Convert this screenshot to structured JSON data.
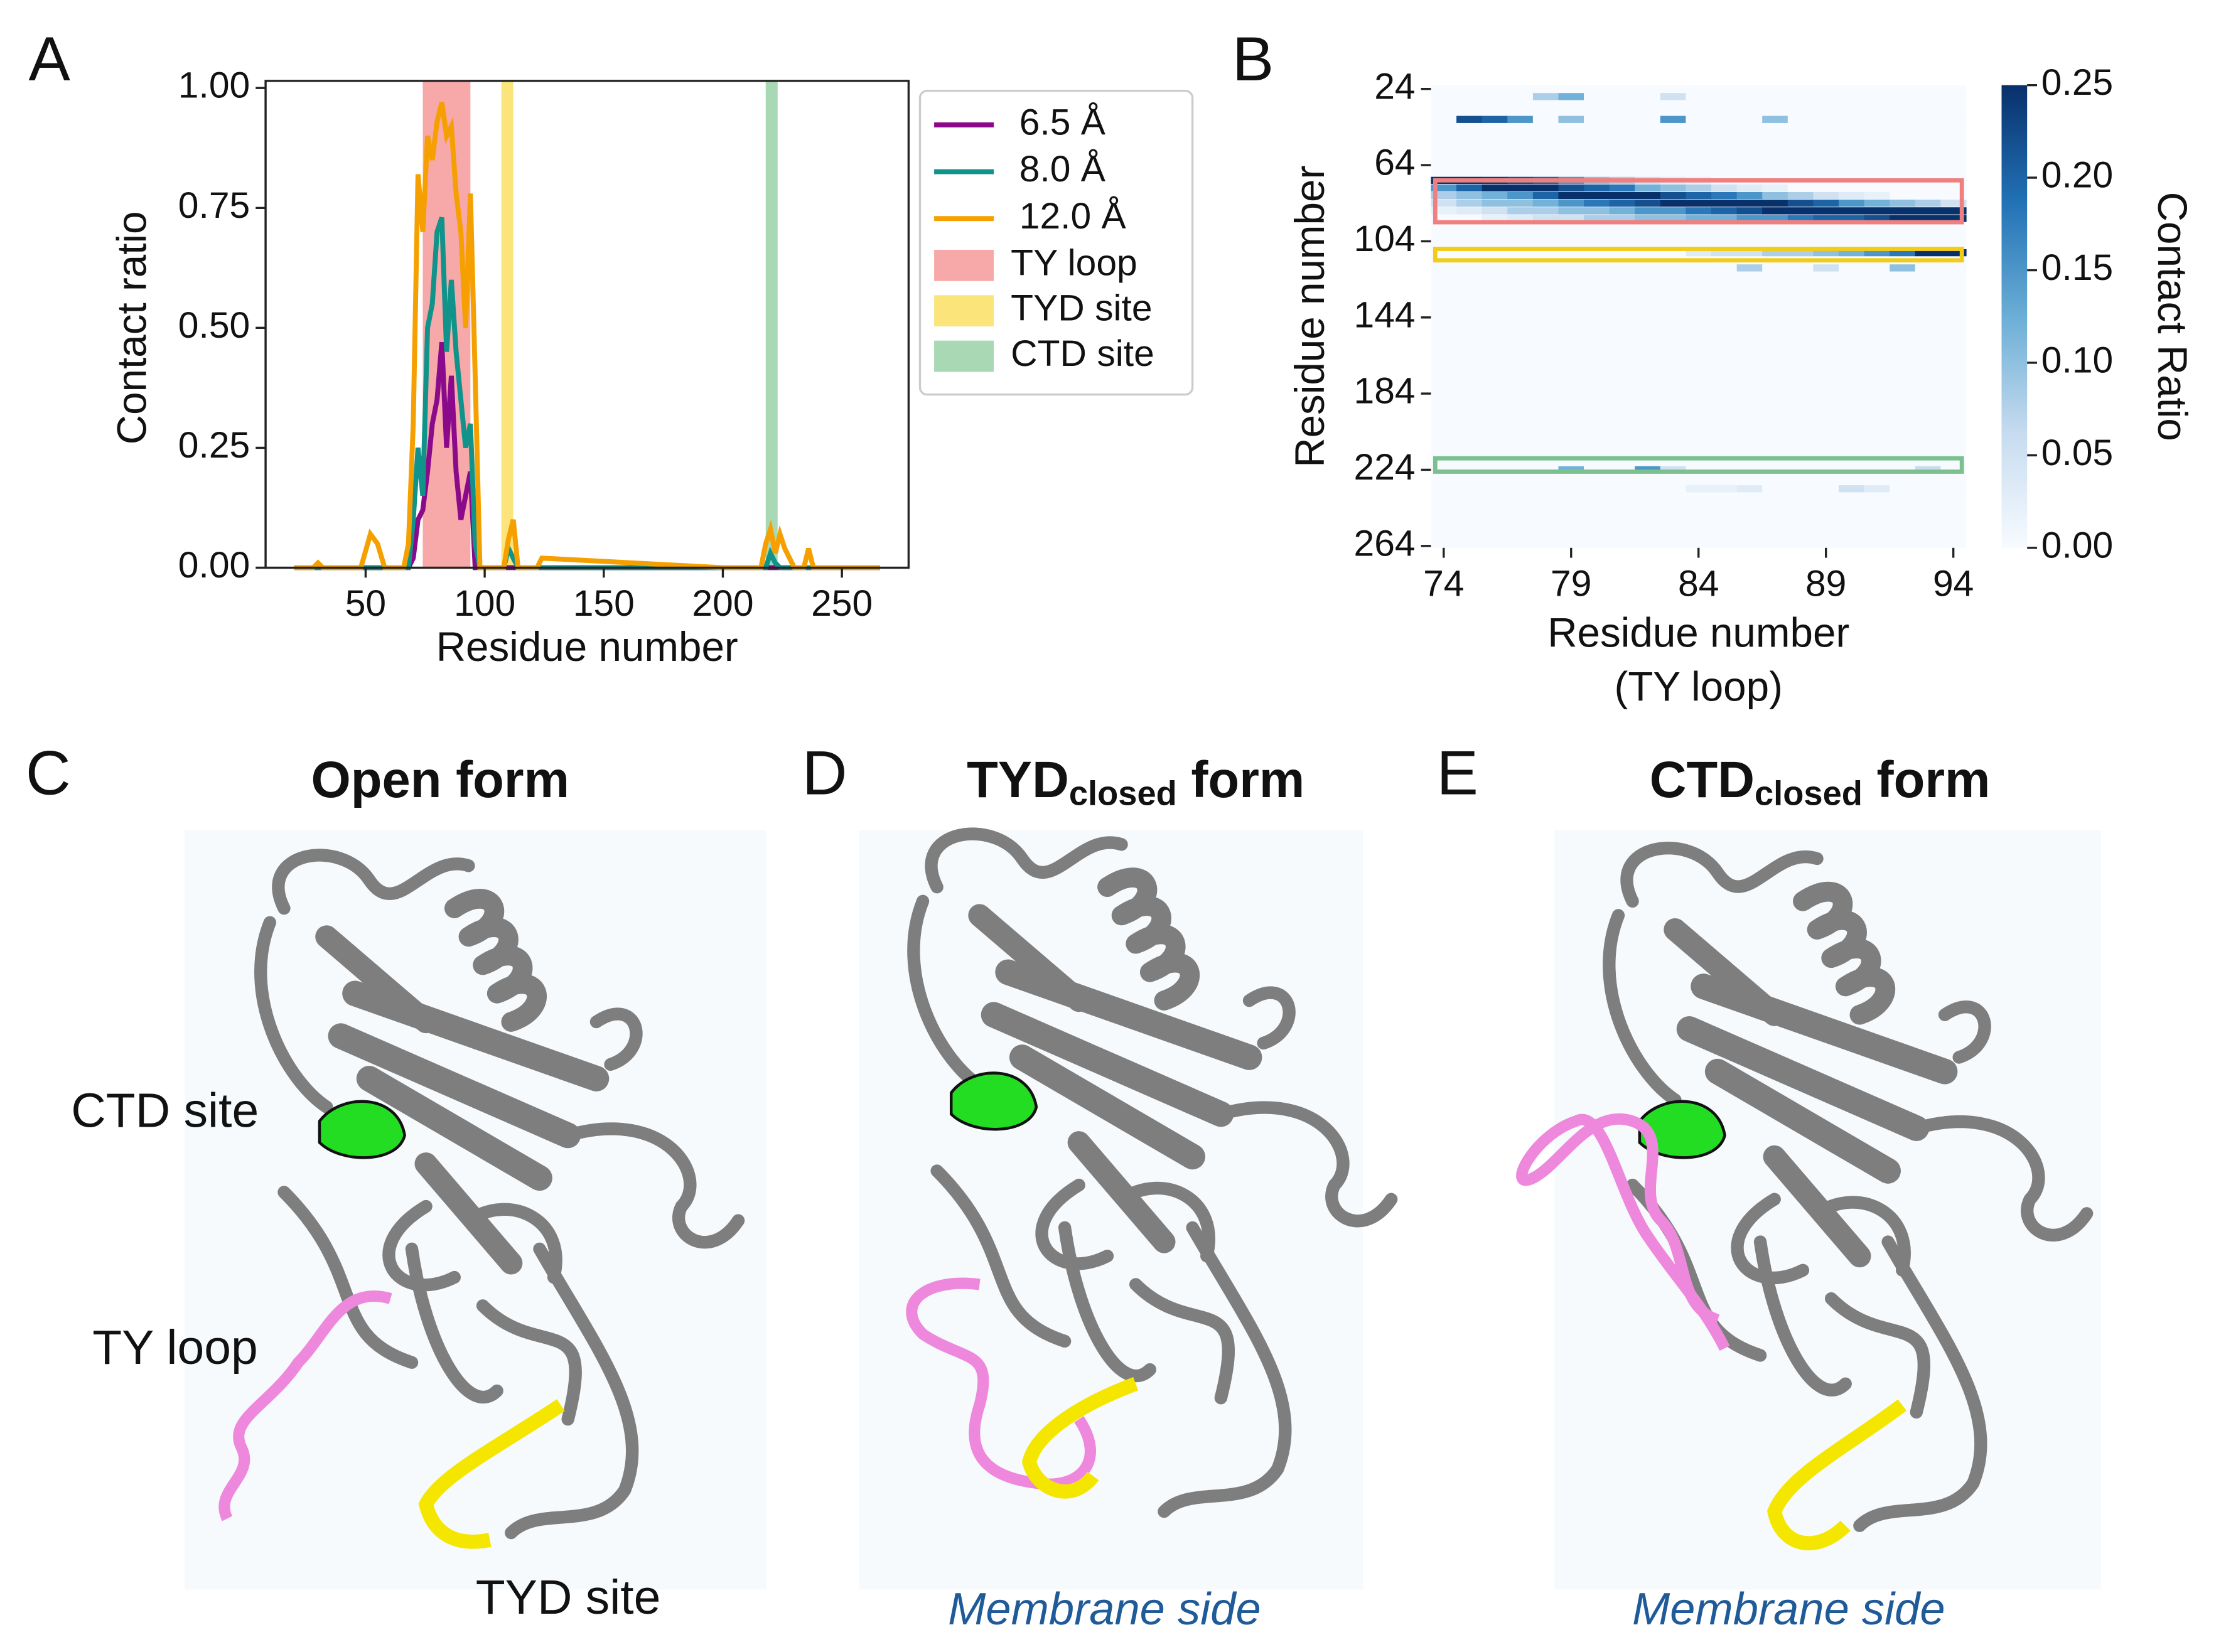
{
  "chart_data": [
    {
      "type": "line",
      "panel": "A",
      "x": [
        20,
        28,
        30,
        32,
        48,
        52,
        55,
        58,
        66,
        68,
        70,
        72,
        74,
        76,
        78,
        80,
        82,
        84,
        86,
        88,
        90,
        92,
        94,
        96,
        98,
        108,
        110,
        112,
        114,
        122,
        124,
        200,
        216,
        218,
        220,
        222,
        224,
        226,
        230,
        234,
        236,
        238,
        266
      ],
      "series": [
        {
          "name": "6.5 Å",
          "color": "#8b0a8b",
          "values": [
            0,
            0,
            0,
            0,
            0,
            0,
            0,
            0,
            0,
            0,
            0.02,
            0.1,
            0.12,
            0.2,
            0.3,
            0.35,
            0.47,
            0.25,
            0.4,
            0.2,
            0.1,
            0.15,
            0.2,
            0,
            0,
            0,
            0,
            0,
            0,
            0,
            0,
            0,
            0,
            0,
            0,
            0,
            0,
            0,
            0,
            0,
            0,
            0,
            0
          ]
        },
        {
          "name": "8.0 Å",
          "color": "#10938a",
          "values": [
            0,
            0,
            0,
            0,
            0,
            0,
            0,
            0,
            0,
            0,
            0.1,
            0.25,
            0.15,
            0.5,
            0.55,
            0.7,
            0.73,
            0.45,
            0.6,
            0.45,
            0.35,
            0.25,
            0.3,
            0.05,
            0,
            0,
            0.04,
            0.02,
            0,
            0,
            0,
            0,
            0,
            0,
            0.03,
            0.01,
            0,
            0,
            0,
            0,
            0,
            0,
            0
          ]
        },
        {
          "name": "12.0 Å",
          "color": "#f5a000",
          "values": [
            0,
            0,
            0.01,
            0,
            0,
            0.07,
            0.05,
            0,
            0,
            0.05,
            0.3,
            0.82,
            0.7,
            0.9,
            0.85,
            0.93,
            0.97,
            0.9,
            0.92,
            0.78,
            0.7,
            0.5,
            0.78,
            0.4,
            0,
            0,
            0.06,
            0.1,
            0,
            0,
            0.02,
            0,
            0,
            0.05,
            0.08,
            0.03,
            0.07,
            0.04,
            0,
            0,
            0.04,
            0,
            0
          ]
        }
      ],
      "bands": [
        {
          "name": "TY loop",
          "color": "#f7a8a8",
          "range": [
            74,
            94
          ]
        },
        {
          "name": "TYD site",
          "color": "#fbe57a",
          "range": [
            107,
            112
          ]
        },
        {
          "name": "CTD site",
          "color": "#a8d8b4",
          "range": [
            218,
            223
          ]
        }
      ],
      "xlabel": "Residue number",
      "ylabel": "Contact ratio",
      "xlim": [
        8,
        278
      ],
      "ylim": [
        0,
        1
      ],
      "xticks": [
        50,
        100,
        150,
        200,
        250
      ],
      "yticks": [
        {
          "value": 0,
          "label": "0.00"
        },
        {
          "value": 0.25,
          "label": "0.25"
        },
        {
          "value": 0.5,
          "label": "0.50"
        },
        {
          "value": 0.75,
          "label": "0.75"
        },
        {
          "value": 1,
          "label": "1.00"
        }
      ],
      "legend": "outside right"
    },
    {
      "type": "heatmap",
      "panel": "B",
      "x": [
        74,
        75,
        76,
        77,
        78,
        79,
        80,
        81,
        82,
        83,
        84,
        85,
        86,
        87,
        88,
        89,
        90,
        91,
        92,
        93,
        94
      ],
      "y": [
        28,
        40,
        72,
        76,
        80,
        84,
        88,
        92,
        110,
        118,
        224,
        234
      ],
      "values": [
        [
          0,
          0,
          0,
          0,
          0.08,
          0.12,
          0,
          0,
          0,
          0.05,
          0,
          0,
          0,
          0,
          0,
          0,
          0,
          0,
          0,
          0,
          0
        ],
        [
          0,
          0.22,
          0.2,
          0.15,
          0,
          0.1,
          0,
          0,
          0,
          0.15,
          0,
          0,
          0,
          0.1,
          0,
          0,
          0,
          0,
          0,
          0,
          0
        ],
        [
          0.25,
          0.25,
          0.24,
          0.22,
          0.2,
          0.15,
          0.1,
          0.08,
          0.05,
          0.03,
          0.02,
          0,
          0,
          0,
          0,
          0,
          0,
          0,
          0,
          0,
          0
        ],
        [
          0.15,
          0.2,
          0.25,
          0.25,
          0.25,
          0.22,
          0.2,
          0.18,
          0.12,
          0.1,
          0.08,
          0.05,
          0.03,
          0.02,
          0,
          0,
          0,
          0,
          0,
          0,
          0
        ],
        [
          0.08,
          0.1,
          0.12,
          0.15,
          0.2,
          0.25,
          0.25,
          0.25,
          0.25,
          0.22,
          0.2,
          0.18,
          0.15,
          0.1,
          0.08,
          0.05,
          0.03,
          0.02,
          0,
          0,
          0
        ],
        [
          0.05,
          0.08,
          0.1,
          0.1,
          0.12,
          0.15,
          0.18,
          0.2,
          0.22,
          0.25,
          0.25,
          0.25,
          0.25,
          0.25,
          0.22,
          0.2,
          0.15,
          0.12,
          0.1,
          0.08,
          0.05
        ],
        [
          0.02,
          0.03,
          0.05,
          0.08,
          0.08,
          0.1,
          0.1,
          0.12,
          0.15,
          0.15,
          0.18,
          0.2,
          0.22,
          0.25,
          0.25,
          0.25,
          0.25,
          0.25,
          0.25,
          0.25,
          0.25
        ],
        [
          0,
          0,
          0.02,
          0.03,
          0.05,
          0.05,
          0.08,
          0.08,
          0.1,
          0.1,
          0.12,
          0.12,
          0.15,
          0.15,
          0.18,
          0.2,
          0.2,
          0.22,
          0.25,
          0.25,
          0.25
        ],
        [
          0,
          0,
          0,
          0,
          0,
          0,
          0,
          0,
          0,
          0,
          0.03,
          0.05,
          0.05,
          0.08,
          0.08,
          0.1,
          0.12,
          0.15,
          0.18,
          0.25,
          0.25
        ],
        [
          0,
          0,
          0,
          0,
          0,
          0,
          0,
          0,
          0,
          0,
          0,
          0,
          0.08,
          0,
          0,
          0.05,
          0,
          0,
          0.1,
          0,
          0
        ],
        [
          0,
          0,
          0,
          0,
          0,
          0.12,
          0,
          0,
          0.15,
          0.05,
          0,
          0,
          0,
          0,
          0,
          0,
          0,
          0,
          0,
          0.06,
          0
        ],
        [
          0,
          0,
          0,
          0,
          0,
          0,
          0,
          0,
          0,
          0,
          0.02,
          0.02,
          0.03,
          0,
          0,
          0,
          0.05,
          0.03,
          0,
          0,
          0
        ]
      ],
      "boxes": [
        {
          "color": "#f08080",
          "range": [
            72,
            94
          ]
        },
        {
          "color": "#f2cc1a",
          "range": [
            108,
            114
          ]
        },
        {
          "color": "#7cc08e",
          "range": [
            218,
            225
          ]
        }
      ],
      "xlabel": [
        "Residue number",
        "(TY loop)"
      ],
      "ylabel": "Residue number",
      "xlim": [
        73.5,
        94.5
      ],
      "ylim": [
        265,
        22
      ],
      "xticks": [
        74,
        79,
        84,
        89,
        94
      ],
      "yticks": [
        24,
        64,
        104,
        144,
        184,
        224,
        264
      ],
      "colorbar": {
        "label": "Contact Ratio",
        "range": [
          0,
          0.25
        ],
        "colors": [
          "#f7fbff",
          "#c6dbef",
          "#6baed6",
          "#2171b5",
          "#08306b"
        ],
        "ticks": [
          {
            "value": 0,
            "label": "0.00"
          },
          {
            "value": 0.05,
            "label": "0.05"
          },
          {
            "value": 0.1,
            "label": "0.10"
          },
          {
            "value": 0.15,
            "label": "0.15"
          },
          {
            "value": 0.2,
            "label": "0.20"
          },
          {
            "value": 0.25,
            "label": "0.25"
          }
        ]
      }
    }
  ],
  "panels": [
    {
      "letter": "C",
      "title_main": "Open form",
      "labels": [
        "CTD site",
        "TY loop",
        "TYD site"
      ]
    },
    {
      "letter": "D",
      "title_main": "TYD",
      "title_sub": "closed",
      "title_rest": " form",
      "note": "Membrane side"
    },
    {
      "letter": "E",
      "title_main": "CTD",
      "title_sub": "closed",
      "title_rest": " form",
      "note": "Membrane side"
    }
  ]
}
